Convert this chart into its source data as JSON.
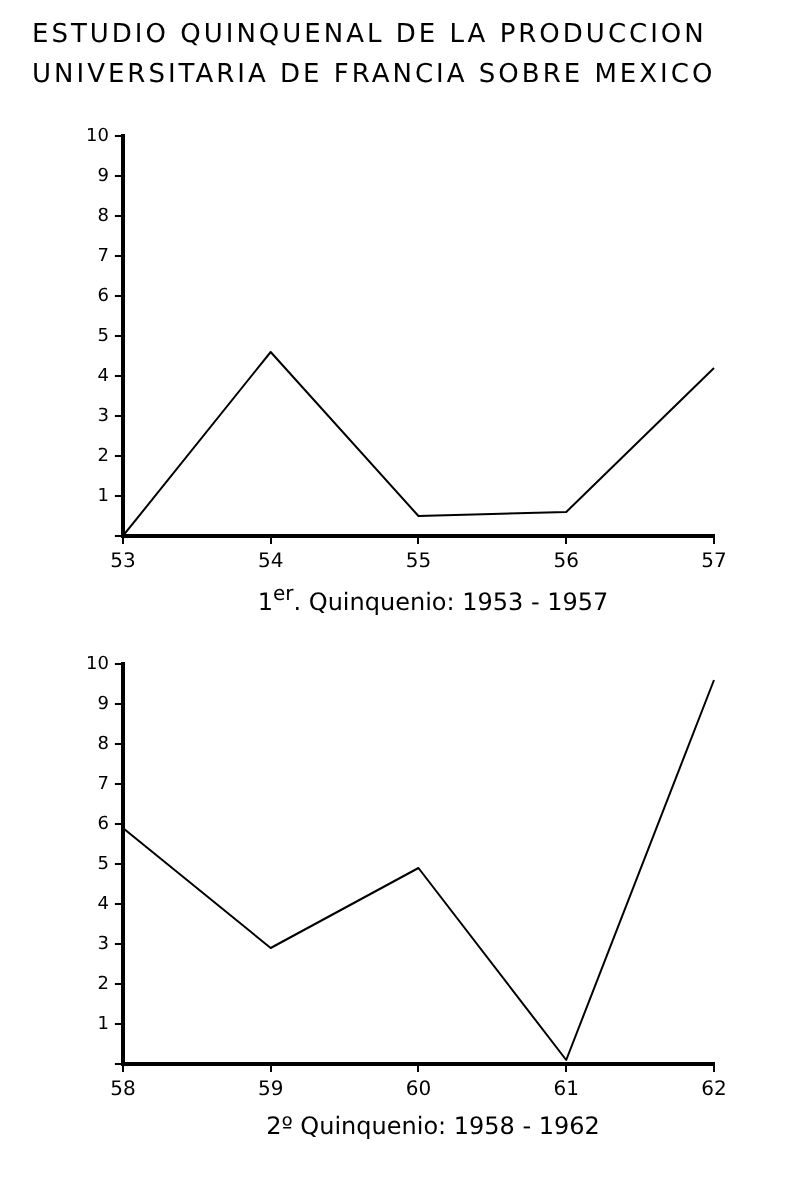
{
  "chart_data": [
    {
      "type": "line",
      "title": "ESTUDIO QUINQUENAL DE LA PRODUCCION UNIVERSITARIA DE FRANCIA SOBRE MEXICO",
      "xlabel": "1$^{er}$. Quinquenio:  1953 - 1957",
      "categories": [
        "53",
        "54",
        "55",
        "56",
        "57"
      ],
      "series": [
        {
          "color": "#000000",
          "values": [
            0,
            4.6,
            0.5,
            0.6,
            4.2
          ]
        }
      ],
      "ylim": [
        0,
        10
      ],
      "yticks": [
        {
          "value": 0,
          "label": null
        },
        1,
        2,
        3,
        4,
        5,
        6,
        7,
        8,
        9,
        10
      ],
      "grid": false,
      "legend": false,
      "marker": "none",
      "line_style": "solid"
    },
    {
      "type": "line",
      "xlabel": "2º Quinquenio:  1958 - 1962",
      "categories": [
        "58",
        "59",
        "60",
        "61",
        "62"
      ],
      "series": [
        {
          "color": "#000000",
          "values": [
            5.9,
            2.9,
            4.9,
            0.1,
            9.6
          ]
        }
      ],
      "ylim": [
        0,
        10
      ],
      "yticks": [
        {
          "value": 0,
          "label": null
        },
        1,
        2,
        3,
        4,
        5,
        6,
        7,
        8,
        9,
        10
      ],
      "grid": false,
      "legend": false,
      "marker": "none",
      "line_style": "solid"
    }
  ]
}
